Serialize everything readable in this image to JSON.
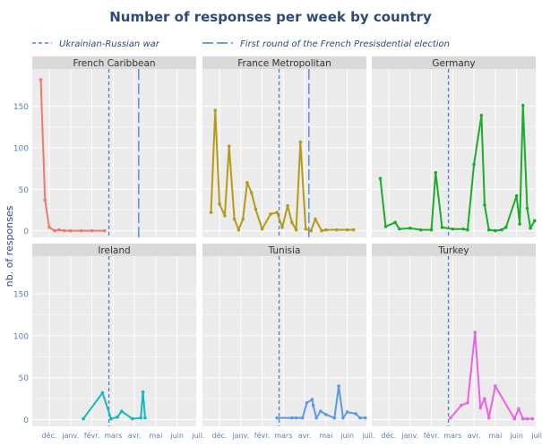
{
  "title": "Number of responses per week by country",
  "legend": [
    {
      "label": "Ukrainian-Russian war",
      "color": "#4a7fd6",
      "dash": "dashed"
    },
    {
      "label": "First round of the French Presisdential election",
      "color": "#4a7fd6",
      "dash": "longdash"
    }
  ],
  "colors": {
    "title": "#2d4a7a",
    "panel_bg": "#ebebeb",
    "strip_bg": "#d9d9d9",
    "grid": "#ffffff",
    "tick_label": "#5b7fb8",
    "axis_label": "#2d4a7a",
    "vline": "#4a7fd6"
  },
  "chart_data": {
    "type": "line",
    "ylabel": "nb. of responses",
    "xlabel": "",
    "xlim": [
      -0.3,
      7.4
    ],
    "ylim": [
      -8,
      195
    ],
    "y_ticks": [
      0,
      50,
      100,
      150
    ],
    "x_ticks": [
      {
        "label": "déc.",
        "value": 0.5
      },
      {
        "label": "janv.",
        "value": 1.5
      },
      {
        "label": "févr.",
        "value": 2.5
      },
      {
        "label": "mars",
        "value": 3.5
      },
      {
        "label": "avr.",
        "value": 4.5
      },
      {
        "label": "mai",
        "value": 5.5
      },
      {
        "label": "juin",
        "value": 6.5
      },
      {
        "label": "juil.",
        "value": 7.5
      }
    ],
    "vlines": [
      {
        "event": "Ukrainian-Russian war",
        "x": 3.3,
        "style": "dashed"
      },
      {
        "event": "First round of the French Presisdential election",
        "x": 4.7,
        "style": "longdash"
      }
    ],
    "series": [
      {
        "name": "French Caribbean",
        "color": "#f1786b",
        "show_election": true,
        "x": [
          0.1,
          0.3,
          0.5,
          0.75,
          0.95,
          1.2,
          1.5,
          2.0,
          2.5,
          3.1
        ],
        "y": [
          182,
          37,
          4,
          0,
          1,
          0,
          0,
          0,
          0,
          0
        ]
      },
      {
        "name": "France Metropolitan",
        "color": "#b39b17",
        "show_election": true,
        "x": [
          0.1,
          0.3,
          0.5,
          0.75,
          0.95,
          1.2,
          1.4,
          1.6,
          1.8,
          2.0,
          2.2,
          2.5,
          2.9,
          3.2,
          3.45,
          3.7,
          3.9,
          4.1,
          4.3,
          4.55,
          4.8,
          5.0,
          5.3,
          5.5,
          6.0,
          6.5,
          6.8
        ],
        "y": [
          22,
          145,
          32,
          18,
          102,
          14,
          1,
          14,
          58,
          46,
          26,
          2,
          20,
          22,
          4,
          30,
          10,
          1,
          107,
          2,
          0,
          14,
          0,
          1,
          1,
          1,
          1
        ]
      },
      {
        "name": "Germany",
        "color": "#1aad2c",
        "show_election": false,
        "x": [
          0.1,
          0.35,
          0.8,
          1.0,
          1.5,
          2.0,
          2.5,
          2.7,
          3.0,
          3.5,
          4.0,
          4.2,
          4.5,
          4.85,
          5.0,
          5.2,
          5.5,
          5.8,
          6.0,
          6.5,
          6.65,
          6.8,
          7.0,
          7.15,
          7.35
        ],
        "y": [
          63,
          5,
          10,
          2,
          3,
          1,
          1,
          70,
          4,
          2,
          2,
          1,
          80,
          139,
          31,
          1,
          0,
          1,
          4,
          42,
          8,
          151,
          27,
          3,
          12
        ]
      },
      {
        "name": "Ireland",
        "color": "#13b8bf",
        "show_election": false,
        "x": [
          2.1,
          3.0,
          3.4,
          3.7,
          3.9,
          4.4,
          4.8,
          4.9,
          5.0
        ],
        "y": [
          1,
          32,
          1,
          3,
          10,
          1,
          2,
          33,
          2
        ]
      },
      {
        "name": "Tunisia",
        "color": "#5a99e8",
        "show_election": false,
        "x": [
          3.2,
          3.9,
          4.1,
          4.4,
          4.6,
          4.85,
          4.9,
          5.05,
          5.25,
          5.5,
          5.9,
          6.1,
          6.3,
          6.5,
          6.9,
          7.1,
          7.35
        ],
        "y": [
          2,
          2,
          2,
          2,
          20,
          24,
          17,
          2,
          10,
          6,
          2,
          40,
          2,
          9,
          7,
          2,
          2
        ]
      },
      {
        "name": "Turkey",
        "color": "#e964e0",
        "show_election": false,
        "x": [
          3.4,
          3.9,
          4.2,
          4.55,
          4.8,
          5.0,
          5.2,
          5.5,
          6.4,
          6.6,
          6.8,
          7.0,
          7.25
        ],
        "y": [
          2,
          17,
          20,
          104,
          14,
          25,
          2,
          40,
          1,
          13,
          1,
          1,
          1
        ]
      }
    ]
  }
}
